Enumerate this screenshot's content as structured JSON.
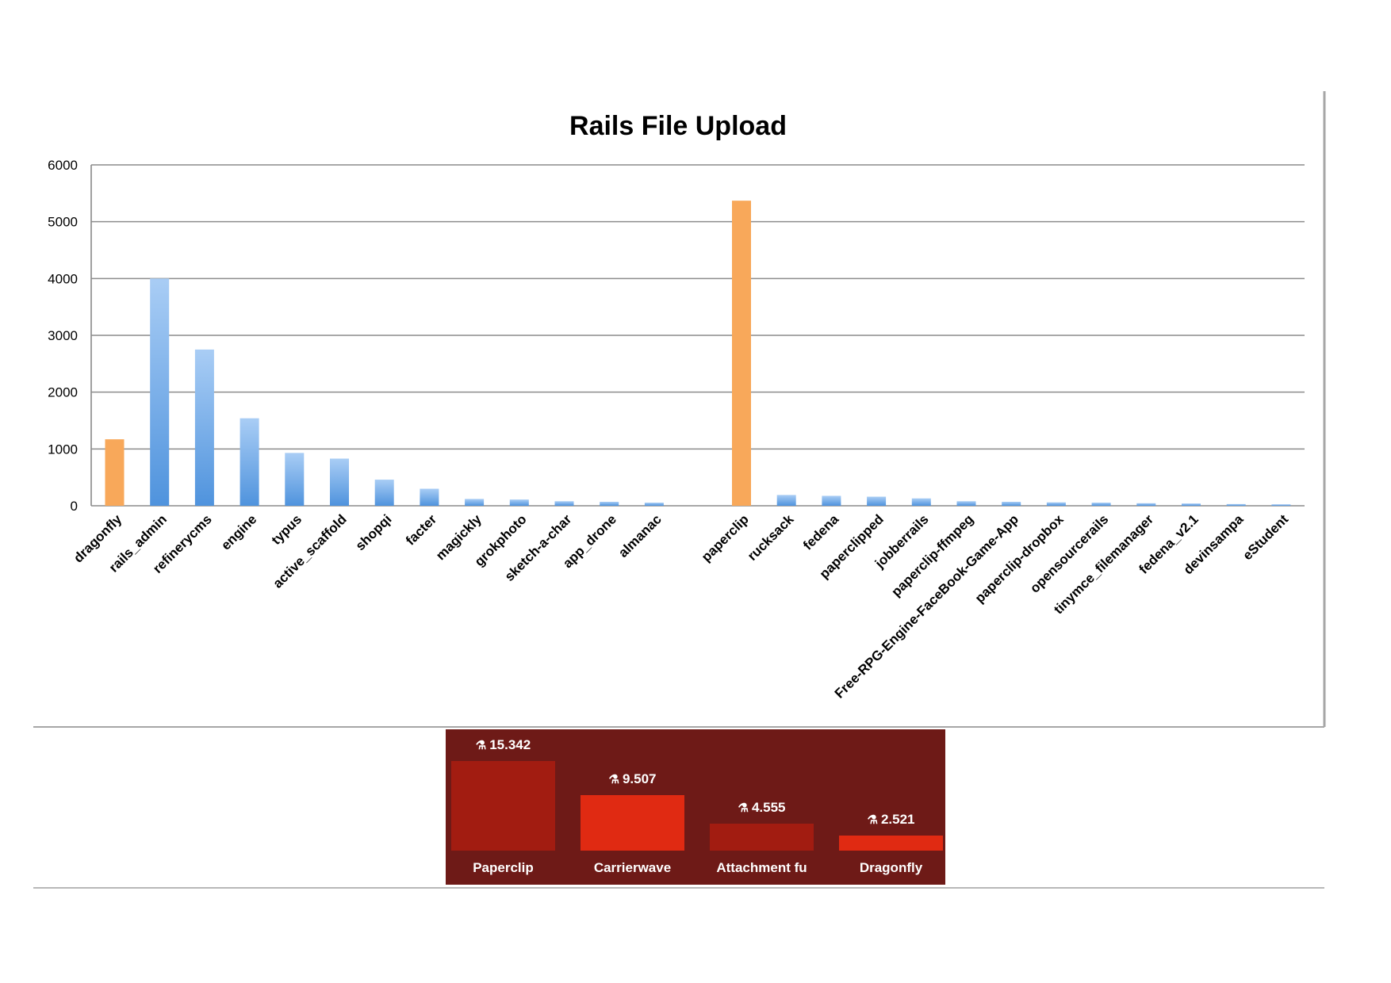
{
  "chart_data": [
    {
      "type": "bar",
      "title": "Rails File Upload",
      "xlabel": "",
      "ylabel": "",
      "ylim": [
        0,
        6000
      ],
      "yticks": [
        0,
        1000,
        2000,
        3000,
        4000,
        5000,
        6000
      ],
      "grid": true,
      "legend": "none",
      "colors": {
        "highlight": "#f8a85a",
        "default": "#5b9be0",
        "default_light": "#a9cdf5"
      },
      "groups": [
        {
          "categories": [
            "dragonfly",
            "rails_admin",
            "refinerycms",
            "engine",
            "typus",
            "active_scaffold",
            "shopqi",
            "facter",
            "magickly",
            "grokphoto",
            "sketch-a-char",
            "app_drone",
            "almanac"
          ],
          "values": [
            1170,
            4000,
            2750,
            1540,
            930,
            830,
            460,
            300,
            120,
            110,
            80,
            70,
            55
          ],
          "highlight": [
            true,
            false,
            false,
            false,
            false,
            false,
            false,
            false,
            false,
            false,
            false,
            false,
            false
          ]
        },
        {
          "categories": [
            "paperclip",
            "rucksack",
            "fedena",
            "paperclipped",
            "jobberrails",
            "paperclip-ffmpeg",
            "Free-RPG-Engine-FaceBook-Game-App",
            "paperclip-dropbox",
            "opensourcerails",
            "tinymce_filemanager",
            "fedena_v2.1",
            "devinsampa",
            "eStudent"
          ],
          "values": [
            5370,
            190,
            175,
            160,
            130,
            80,
            70,
            60,
            55,
            45,
            40,
            30,
            25
          ],
          "highlight": [
            true,
            false,
            false,
            false,
            false,
            false,
            false,
            false,
            false,
            false,
            false,
            false,
            false
          ]
        }
      ]
    },
    {
      "type": "bar",
      "title": "",
      "categories": [
        "Paperclip",
        "Carrierwave",
        "Attachment fu",
        "Dragonfly"
      ],
      "values": [
        15.342,
        9.507,
        4.555,
        2.521
      ],
      "value_labels": [
        "15.342",
        "9.507",
        "4.555",
        "2.521"
      ],
      "value_icon": "flask-icon",
      "colors": [
        "#a21c11",
        "#e02a12",
        "#a21c11",
        "#e02a12"
      ],
      "background": "#6e1a17"
    }
  ]
}
